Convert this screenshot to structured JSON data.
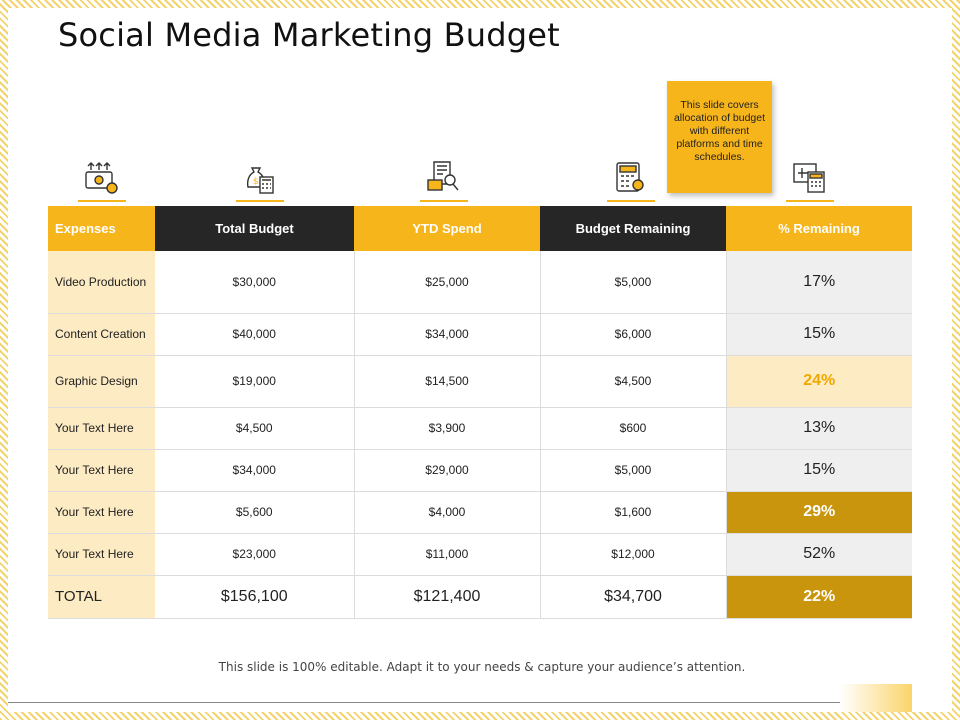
{
  "title": "Social Media Marketing Budget",
  "note": "This slide covers allocation of budget with different platforms and time schedules.",
  "icons": [
    "money-flow-icon",
    "money-bag-calculator-icon",
    "receipt-search-icon",
    "calculator-coin-icon",
    "chart-calculator-icon"
  ],
  "table": {
    "headers": [
      "Expenses",
      "Total Budget",
      "YTD Spend",
      "Budget Remaining",
      "% Remaining"
    ],
    "rows": [
      {
        "expense": "Video Production",
        "total": "$30,000",
        "ytd": "$25,000",
        "remaining": "$5,000",
        "pct": "17%"
      },
      {
        "expense": "Content Creation",
        "total": "$40,000",
        "ytd": "$34,000",
        "remaining": "$6,000",
        "pct": "15%"
      },
      {
        "expense": "Graphic Design",
        "total": "$19,000",
        "ytd": "$14,500",
        "remaining": "$4,500",
        "pct": "24%"
      },
      {
        "expense": "Your Text Here",
        "total": "$4,500",
        "ytd": "$3,900",
        "remaining": "$600",
        "pct": "13%"
      },
      {
        "expense": "Your Text Here",
        "total": "$34,000",
        "ytd": "$29,000",
        "remaining": "$5,000",
        "pct": "15%"
      },
      {
        "expense": "Your Text Here",
        "total": "$5,600",
        "ytd": "$4,000",
        "remaining": "$1,600",
        "pct": "29%"
      },
      {
        "expense": "Your Text Here",
        "total": "$23,000",
        "ytd": "$11,000",
        "remaining": "$12,000",
        "pct": "52%"
      }
    ],
    "total": {
      "expense": "TOTAL",
      "total": "$156,100",
      "ytd": "$121,400",
      "remaining": "$34,700",
      "pct": "22%"
    }
  },
  "footer": "This slide is 100% editable. Adapt it to your needs & capture your audience’s attention.",
  "colors": {
    "accent": "#f7b51c",
    "dark_header": "#262626",
    "dark_highlight": "#c8950c",
    "light_highlight": "#fdebc3"
  }
}
